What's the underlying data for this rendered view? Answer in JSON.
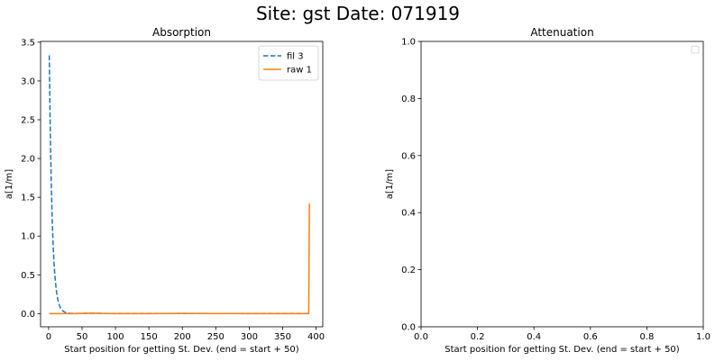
{
  "figure": {
    "suptitle": "Site: gst Date: 071919"
  },
  "chart_data": [
    {
      "type": "line",
      "title": "Absorption",
      "xlabel": "Start position for getting St. Dev. (end = start + 50)",
      "ylabel": "a[1/m]",
      "xlim": [
        -12,
        410
      ],
      "ylim": [
        -0.17,
        3.51
      ],
      "xticks": [
        0,
        50,
        100,
        150,
        200,
        250,
        300,
        350,
        400
      ],
      "yticks": [
        0.0,
        0.5,
        1.0,
        1.5,
        2.0,
        2.5,
        3.0,
        3.5
      ],
      "xtick_labels": [
        "0",
        "50",
        "100",
        "150",
        "200",
        "250",
        "300",
        "350",
        "400"
      ],
      "ytick_labels": [
        "0.0",
        "0.5",
        "1.0",
        "1.5",
        "2.0",
        "2.5",
        "3.0",
        "3.5"
      ],
      "legend": {
        "position": "top-right"
      },
      "grid": false,
      "series": [
        {
          "name": "fil 3",
          "color": "#1f77b4",
          "dash": "dashed",
          "x": [
            1,
            2,
            3,
            4,
            5,
            6,
            7,
            8,
            9,
            10,
            12,
            14,
            16,
            18,
            20,
            22,
            25,
            28,
            32,
            36,
            40,
            50,
            60,
            70,
            80,
            100,
            150,
            200,
            250,
            300,
            350,
            390
          ],
          "y": [
            3.33,
            2.65,
            2.1,
            1.68,
            1.33,
            1.06,
            0.85,
            0.67,
            0.54,
            0.43,
            0.27,
            0.17,
            0.11,
            0.07,
            0.045,
            0.03,
            0.015,
            0.008,
            0.004,
            0.002,
            0.001,
            0.003,
            0.005,
            0.004,
            0.002,
            0.001,
            0.001,
            0.002,
            0.001,
            0.001,
            0.001,
            0.001
          ]
        },
        {
          "name": "raw 1",
          "color": "#ff7f0e",
          "dash": "solid",
          "x": [
            1,
            20,
            40,
            60,
            80,
            100,
            150,
            200,
            250,
            300,
            350,
            388,
            389,
            390
          ],
          "y": [
            0.0,
            0.0,
            0.0,
            0.005,
            0.003,
            0.0,
            0.0,
            0.002,
            0.001,
            0.0,
            0.0,
            0.0,
            0.0,
            1.42
          ]
        }
      ]
    },
    {
      "type": "line",
      "title": "Attenuation",
      "xlabel": "Start position for getting St. Dev. (end = start + 50)",
      "ylabel": "a[1/m]",
      "xlim": [
        0.0,
        1.0
      ],
      "ylim": [
        0.0,
        1.0
      ],
      "xticks": [
        0.0,
        0.2,
        0.4,
        0.6,
        0.8,
        1.0
      ],
      "yticks": [
        0.0,
        0.2,
        0.4,
        0.6,
        0.8,
        1.0
      ],
      "xtick_labels": [
        "0.0",
        "0.2",
        "0.4",
        "0.6",
        "0.8",
        "1.0"
      ],
      "ytick_labels": [
        "0.0",
        "0.2",
        "0.4",
        "0.6",
        "0.8",
        "1.0"
      ],
      "legend": {
        "position": "top-right",
        "empty": true
      },
      "grid": false,
      "series": []
    }
  ]
}
